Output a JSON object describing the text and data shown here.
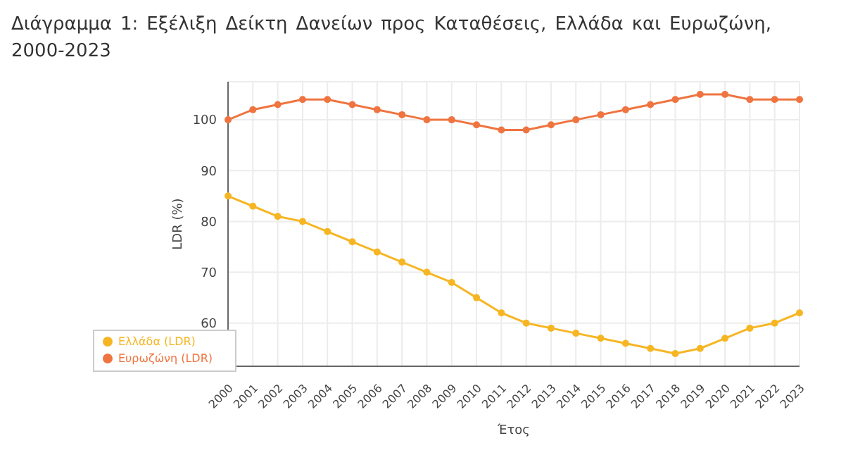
{
  "chart_data": {
    "type": "line",
    "title": "Διάγραμμα 1: Εξέλιξη Δείκτη Δανείων προς Καταθέσεις, Ελλάδα και Ευρωζώνη, 2000-2023",
    "xlabel": "Έτος",
    "ylabel": "LDR (%)",
    "categories": [
      "2000",
      "2001",
      "2002",
      "2003",
      "2004",
      "2005",
      "2006",
      "2007",
      "2008",
      "2009",
      "2010",
      "2011",
      "2012",
      "2013",
      "2014",
      "2015",
      "2016",
      "2017",
      "2018",
      "2019",
      "2020",
      "2021",
      "2022",
      "2023"
    ],
    "series": [
      {
        "name": "Ελλάδα (LDR)",
        "color": "#f6b624",
        "values": [
          85,
          83,
          81,
          80,
          78,
          76,
          74,
          72,
          70,
          68,
          65,
          62,
          60,
          59,
          58,
          57,
          56,
          55,
          54,
          55,
          57,
          59,
          60,
          62
        ]
      },
      {
        "name": "Ευρωζώνη (LDR)",
        "color": "#ef7440",
        "values": [
          100,
          102,
          103,
          104,
          104,
          103,
          102,
          101,
          100,
          100,
          99,
          98,
          98,
          99,
          100,
          101,
          102,
          103,
          104,
          105,
          105,
          104,
          104,
          104
        ]
      }
    ],
    "ylim": [
      51.5,
      107.5
    ],
    "yticks": [
      60,
      70,
      80,
      90,
      100
    ],
    "grid": true,
    "legend": "bottom left",
    "marker": "circle",
    "line_style": "solid"
  }
}
